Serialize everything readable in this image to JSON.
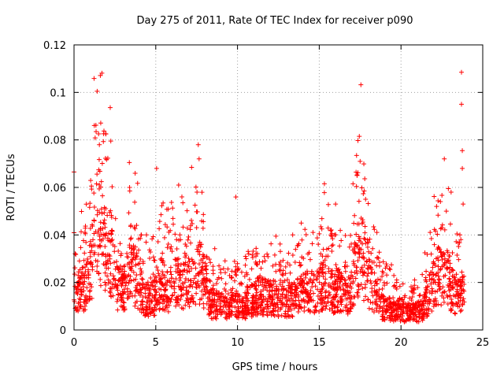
{
  "chart_data": {
    "type": "scatter",
    "title": "Day 275 of 2011, Rate Of TEC Index for receiver p090",
    "xlabel": "GPS time / hours",
    "ylabel": "ROTI / TECUs",
    "xlim": [
      0,
      25
    ],
    "ylim": [
      0,
      0.12
    ],
    "x_ticks": [
      0,
      5,
      10,
      15,
      20,
      25
    ],
    "y_ticks": [
      0,
      0.02,
      0.04,
      0.06,
      0.08,
      0.1,
      0.12
    ],
    "x_tick_labels": [
      "0",
      "5",
      "10",
      "15",
      "20",
      "25"
    ],
    "y_tick_labels": [
      "0",
      "0.02",
      "0.04",
      "0.06",
      "0.08",
      "0.1",
      "0.12"
    ],
    "grid": true,
    "marker": "+",
    "series": [
      {
        "color": "#ff0000",
        "profile": [
          {
            "x": 0.0,
            "y": 0.016
          },
          {
            "x": 0.3,
            "y": 0.02
          },
          {
            "x": 0.7,
            "y": 0.022
          },
          {
            "x": 1.0,
            "y": 0.03
          },
          {
            "x": 1.3,
            "y": 0.045
          },
          {
            "x": 1.6,
            "y": 0.055
          },
          {
            "x": 1.9,
            "y": 0.04
          },
          {
            "x": 2.3,
            "y": 0.035
          },
          {
            "x": 2.7,
            "y": 0.022
          },
          {
            "x": 3.1,
            "y": 0.02
          },
          {
            "x": 3.5,
            "y": 0.032
          },
          {
            "x": 3.9,
            "y": 0.025
          },
          {
            "x": 4.3,
            "y": 0.016
          },
          {
            "x": 4.8,
            "y": 0.015
          },
          {
            "x": 5.3,
            "y": 0.025
          },
          {
            "x": 5.8,
            "y": 0.02
          },
          {
            "x": 6.3,
            "y": 0.025
          },
          {
            "x": 6.8,
            "y": 0.022
          },
          {
            "x": 7.3,
            "y": 0.028
          },
          {
            "x": 7.8,
            "y": 0.03
          },
          {
            "x": 8.3,
            "y": 0.014
          },
          {
            "x": 8.8,
            "y": 0.013
          },
          {
            "x": 9.3,
            "y": 0.012
          },
          {
            "x": 9.8,
            "y": 0.013
          },
          {
            "x": 10.3,
            "y": 0.012
          },
          {
            "x": 10.8,
            "y": 0.015
          },
          {
            "x": 11.3,
            "y": 0.018
          },
          {
            "x": 11.8,
            "y": 0.017
          },
          {
            "x": 12.3,
            "y": 0.016
          },
          {
            "x": 12.8,
            "y": 0.014
          },
          {
            "x": 13.3,
            "y": 0.015
          },
          {
            "x": 13.8,
            "y": 0.018
          },
          {
            "x": 14.3,
            "y": 0.02
          },
          {
            "x": 14.8,
            "y": 0.02
          },
          {
            "x": 15.3,
            "y": 0.024
          },
          {
            "x": 15.8,
            "y": 0.02
          },
          {
            "x": 16.3,
            "y": 0.02
          },
          {
            "x": 16.8,
            "y": 0.015
          },
          {
            "x": 17.2,
            "y": 0.03
          },
          {
            "x": 17.5,
            "y": 0.045
          },
          {
            "x": 17.8,
            "y": 0.032
          },
          {
            "x": 18.3,
            "y": 0.02
          },
          {
            "x": 18.8,
            "y": 0.012
          },
          {
            "x": 19.3,
            "y": 0.011
          },
          {
            "x": 19.8,
            "y": 0.01
          },
          {
            "x": 20.3,
            "y": 0.009
          },
          {
            "x": 20.8,
            "y": 0.009
          },
          {
            "x": 21.3,
            "y": 0.01
          },
          {
            "x": 21.7,
            "y": 0.018
          },
          {
            "x": 22.0,
            "y": 0.025
          },
          {
            "x": 22.5,
            "y": 0.03
          },
          {
            "x": 22.8,
            "y": 0.028
          },
          {
            "x": 23.2,
            "y": 0.02
          },
          {
            "x": 23.5,
            "y": 0.018
          },
          {
            "x": 23.9,
            "y": 0.02
          }
        ],
        "outliers": [
          {
            "x": 0.0,
            "y": 0.0665
          },
          {
            "x": 1.35,
            "y": 0.0835
          },
          {
            "x": 1.55,
            "y": 0.078
          },
          {
            "x": 2.25,
            "y": 0.0795
          },
          {
            "x": 5.05,
            "y": 0.068
          },
          {
            "x": 6.4,
            "y": 0.061
          },
          {
            "x": 7.6,
            "y": 0.078
          },
          {
            "x": 7.65,
            "y": 0.072
          },
          {
            "x": 9.9,
            "y": 0.056
          },
          {
            "x": 12.35,
            "y": 0.0395
          },
          {
            "x": 17.45,
            "y": 0.0815
          },
          {
            "x": 17.5,
            "y": 0.071
          },
          {
            "x": 22.65,
            "y": 0.072
          },
          {
            "x": 23.7,
            "y": 0.1085
          },
          {
            "x": 23.7,
            "y": 0.095
          },
          {
            "x": 23.75,
            "y": 0.0755
          },
          {
            "x": 23.75,
            "y": 0.068
          },
          {
            "x": 23.8,
            "y": 0.053
          },
          {
            "x": 16.0,
            "y": 0.053
          },
          {
            "x": 13.9,
            "y": 0.045
          },
          {
            "x": 3.4,
            "y": 0.06
          }
        ]
      }
    ]
  }
}
